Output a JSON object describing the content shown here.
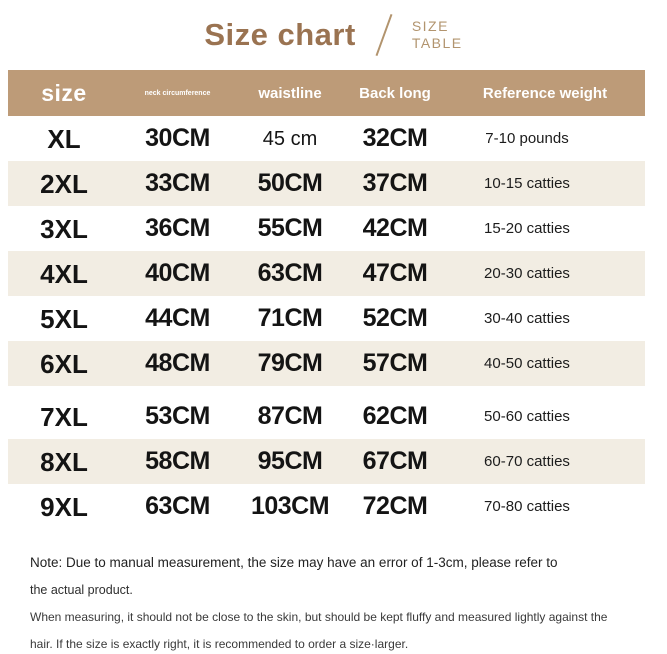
{
  "header": {
    "title": "Size chart",
    "subtitle_line1": "SIZE",
    "subtitle_line2": "TABLE"
  },
  "colors": {
    "title_brown": "#9a7351",
    "subtitle_brown": "#b2946e",
    "table_header_bg": "#bd9b78",
    "row_alt_bg": "#f2ede3",
    "text_dark": "#141414"
  },
  "chart_data": {
    "type": "table",
    "title": "Size chart",
    "columns": [
      "size",
      "neck circumference",
      "waistline",
      "Back long",
      "Reference weight"
    ],
    "rows": [
      {
        "size": "XL",
        "neck": "30CM",
        "waist": "45 cm",
        "back": "32CM",
        "weight": "7-10 pounds"
      },
      {
        "size": "2XL",
        "neck": "33CM",
        "waist": "50CM",
        "back": "37CM",
        "weight": "10-15 catties"
      },
      {
        "size": "3XL",
        "neck": "36CM",
        "waist": "55CM",
        "back": "42CM",
        "weight": "15-20 catties"
      },
      {
        "size": "4XL",
        "neck": "40CM",
        "waist": "63CM",
        "back": "47CM",
        "weight": "20-30 catties"
      },
      {
        "size": "5XL",
        "neck": "44CM",
        "waist": "71CM",
        "back": "52CM",
        "weight": "30-40 catties"
      },
      {
        "size": "6XL",
        "neck": "48CM",
        "waist": "79CM",
        "back": "57CM",
        "weight": "40-50 catties"
      },
      {
        "size": "7XL",
        "neck": "53CM",
        "waist": "87CM",
        "back": "62CM",
        "weight": "50-60 catties"
      },
      {
        "size": "8XL",
        "neck": "58CM",
        "waist": "95CM",
        "back": "67CM",
        "weight": "60-70 catties"
      },
      {
        "size": "9XL",
        "neck": "63CM",
        "waist": "103CM",
        "back": "72CM",
        "weight": "70-80 catties"
      }
    ]
  },
  "notes": [
    "Note: Due to manual measurement, the size may have an error of 1-3cm, please refer to",
    "the actual product.",
    "When measuring, it should not be close to the skin, but should be kept fluffy and measured lightly against the",
    "hair. If the size is exactly right, it is recommended to order a size·larger."
  ]
}
